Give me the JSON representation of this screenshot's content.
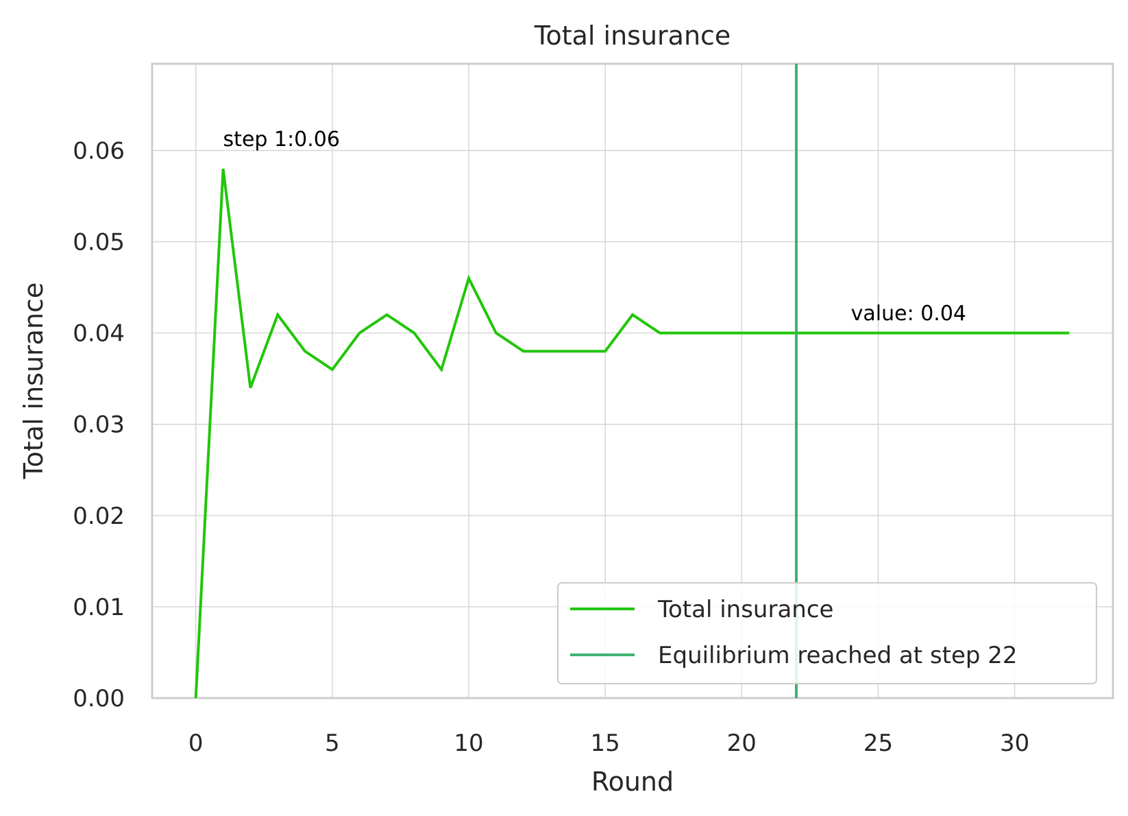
{
  "chart_data": {
    "type": "line",
    "title": "Total insurance",
    "xlabel": "Round",
    "ylabel": "Total insurance",
    "xlim": [
      -1.6,
      33.6
    ],
    "ylim": [
      0,
      0.0695
    ],
    "xticks": [
      0,
      5,
      10,
      15,
      20,
      25,
      30
    ],
    "xtick_labels": [
      "0",
      "5",
      "10",
      "15",
      "20",
      "25",
      "30"
    ],
    "yticks": [
      0,
      0.01,
      0.02,
      0.03,
      0.04,
      0.05,
      0.06
    ],
    "ytick_labels": [
      "0.00",
      "0.01",
      "0.02",
      "0.03",
      "0.04",
      "0.05",
      "0.06"
    ],
    "grid": true,
    "legend_position": "lower-right",
    "series": [
      {
        "name": "Total insurance",
        "color": "#22c60a",
        "x": [
          0,
          1,
          2,
          3,
          4,
          5,
          6,
          7,
          8,
          9,
          10,
          11,
          12,
          13,
          14,
          15,
          16,
          17,
          18,
          19,
          20,
          21,
          22,
          23,
          24,
          25,
          26,
          27,
          28,
          29,
          30,
          31,
          32
        ],
        "y": [
          0,
          0.058,
          0.034,
          0.042,
          0.038,
          0.036,
          0.04,
          0.042,
          0.04,
          0.036,
          0.046,
          0.04,
          0.038,
          0.038,
          0.038,
          0.038,
          0.042,
          0.04,
          0.04,
          0.04,
          0.04,
          0.04,
          0.04,
          0.04,
          0.04,
          0.04,
          0.04,
          0.04,
          0.04,
          0.04,
          0.04,
          0.04,
          0.04
        ]
      }
    ],
    "vline": {
      "x": 22,
      "name": "Equilibrium reached at step 22",
      "color": "#3cb371"
    },
    "annotations": [
      {
        "text": "step 1:0.06",
        "x": 1,
        "y": 0.0605
      },
      {
        "text": "value: 0.04",
        "x": 24,
        "y": 0.0414
      }
    ]
  }
}
